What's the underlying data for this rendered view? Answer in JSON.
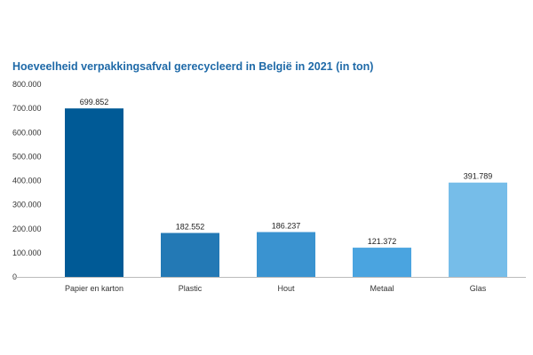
{
  "chart_data": {
    "type": "bar",
    "title": "Hoeveelheid verpakkingsafval gerecycleerd in België in 2021 (in ton)",
    "categories": [
      "Papier en karton",
      "Plastic",
      "Hout",
      "Metaal",
      "Glas"
    ],
    "values": [
      699852,
      182552,
      186237,
      121372,
      391789
    ],
    "value_labels": [
      "699.852",
      "182.552",
      "186.237",
      "121.372",
      "391.789"
    ],
    "colors": [
      "#005a96",
      "#2379b5",
      "#3a93d0",
      "#4aa4e0",
      "#76bde9"
    ],
    "ylim": [
      0,
      800000
    ],
    "y_ticks": [
      0,
      100000,
      200000,
      300000,
      400000,
      500000,
      600000,
      700000,
      800000
    ],
    "y_tick_labels": [
      "0",
      "100.000",
      "200.000",
      "300.000",
      "400.000",
      "500.000",
      "600.000",
      "700.000",
      "800.000"
    ],
    "grid": false,
    "legend": "none",
    "xlabel": "",
    "ylabel": ""
  }
}
